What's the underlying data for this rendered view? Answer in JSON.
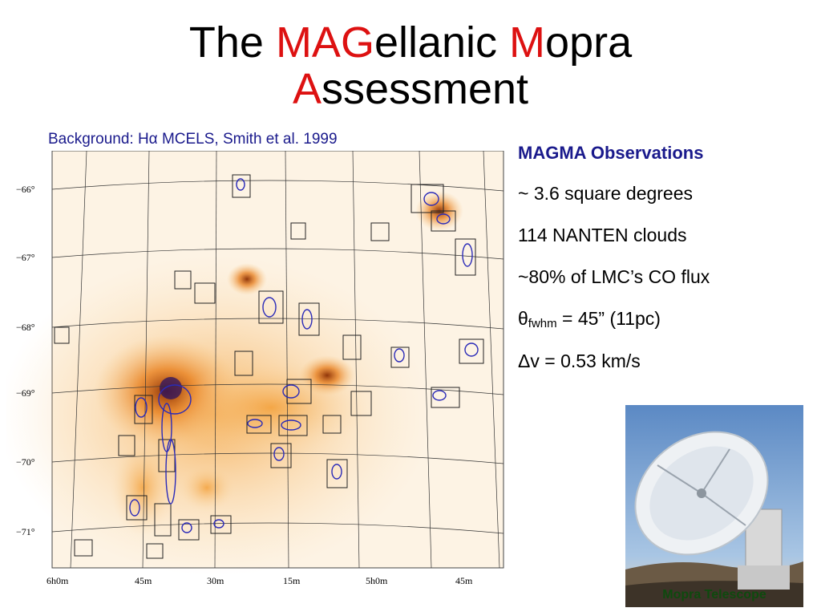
{
  "title": {
    "parts": [
      {
        "text": "The ",
        "highlight": false
      },
      {
        "text": "MAG",
        "highlight": true
      },
      {
        "text": "ellanic ",
        "highlight": false
      },
      {
        "text": "M",
        "highlight": true
      },
      {
        "text": "opra",
        "highlight": false
      },
      {
        "text": "A",
        "highlight": true
      },
      {
        "text": "ssessment",
        "highlight": false
      }
    ],
    "highlight_color": "#dd1111"
  },
  "caption": "Background: Hα MCELS, Smith et al. 1999",
  "map": {
    "y_ticks": [
      "−66°",
      "−67°",
      "−68°",
      "−69°",
      "−70°",
      "−71°"
    ],
    "x_ticks": [
      "6h0m",
      "45m",
      "30m",
      "15m",
      "5h0m",
      "45m"
    ]
  },
  "bullets": {
    "heading": "MAGMA Observations",
    "area": "~ 3.6 square degrees",
    "clouds": "114 NANTEN clouds",
    "flux": "~80% of LMC’s CO flux",
    "beam_symbol": "θ",
    "beam_sub": "fwhm",
    "beam_value": " = 45” (11pc)",
    "velocity": "Δv = 0.53 km/s"
  },
  "photo": {
    "label": "Mopra Telescope"
  },
  "colors": {
    "accent_text": "#1a1a8c",
    "label_green": "#0e4a0e"
  }
}
